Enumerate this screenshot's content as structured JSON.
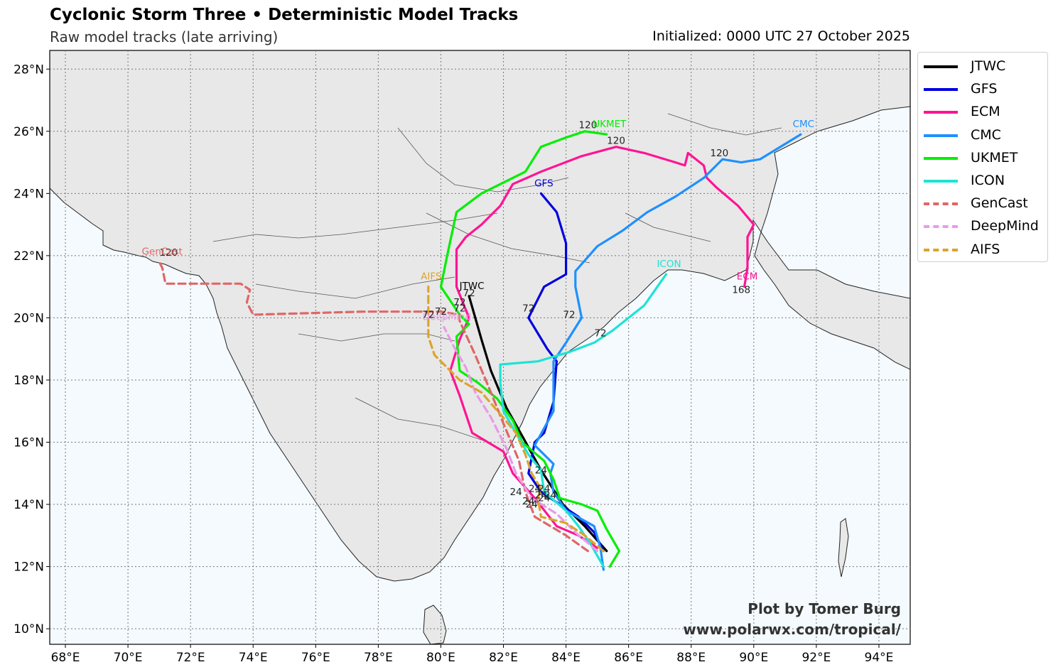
{
  "title": "Cyclonic Storm Three • Deterministic Model Tracks",
  "subtitle": "Raw model tracks (late arriving)",
  "initialized": "Initialized: 0000 UTC 27 October 2025",
  "credit": {
    "line1": "Plot by Tomer Burg",
    "line2": "www.polarwx.com/tropical/"
  },
  "chart_data": {
    "type": "line",
    "xlim": [
      67.5,
      95.0
    ],
    "ylim": [
      9.5,
      28.6
    ],
    "grid": true,
    "legend_placement": "right",
    "x_ticks": [
      "68°E",
      "70°E",
      "72°E",
      "74°E",
      "76°E",
      "78°E",
      "80°E",
      "82°E",
      "84°E",
      "86°E",
      "88°E",
      "90°E",
      "92°E",
      "94°E"
    ],
    "y_ticks": [
      "10°N",
      "12°N",
      "14°N",
      "16°N",
      "18°N",
      "20°N",
      "22°N",
      "24°N",
      "26°N",
      "28°N"
    ],
    "series": [
      {
        "name": "JTWC",
        "color": "#000000",
        "dash": "solid",
        "end_label": "JTWC",
        "points": [
          [
            85.3,
            12.5
          ],
          [
            84.6,
            13.3
          ],
          [
            83.9,
            14.0
          ],
          [
            83.2,
            15.1
          ],
          [
            82.6,
            16.2
          ],
          [
            82.1,
            17.1
          ],
          [
            81.6,
            18.3
          ],
          [
            81.3,
            19.3
          ],
          [
            80.9,
            20.7
          ]
        ],
        "hour_labels": [
          {
            "t": "24",
            "lon": 83.2,
            "lat": 15.0
          },
          {
            "t": "72",
            "lon": 80.9,
            "lat": 20.7
          }
        ]
      },
      {
        "name": "GFS",
        "color": "#0000dd",
        "dash": "solid",
        "end_label": "GFS",
        "points": [
          [
            85.2,
            12.5
          ],
          [
            84.9,
            13.1
          ],
          [
            84.4,
            13.6
          ],
          [
            83.8,
            14.0
          ],
          [
            83.2,
            14.4
          ],
          [
            82.8,
            15.0
          ],
          [
            83.0,
            16.0
          ],
          [
            83.3,
            16.3
          ],
          [
            83.6,
            17.3
          ],
          [
            83.7,
            18.6
          ],
          [
            83.4,
            19.0
          ],
          [
            82.8,
            20.0
          ],
          [
            83.3,
            21.0
          ],
          [
            84.0,
            21.4
          ],
          [
            84.0,
            22.4
          ],
          [
            83.7,
            23.4
          ],
          [
            83.2,
            24.0
          ]
        ],
        "hour_labels": [
          {
            "t": "24",
            "lon": 82.8,
            "lat": 14.0
          },
          {
            "t": "72",
            "lon": 82.8,
            "lat": 20.2
          }
        ]
      },
      {
        "name": "ECM",
        "color": "#ff1493",
        "dash": "solid",
        "end_label": "ECM",
        "points": [
          [
            85.0,
            12.6
          ],
          [
            84.4,
            13.0
          ],
          [
            83.7,
            13.3
          ],
          [
            83.0,
            14.2
          ],
          [
            82.3,
            15.0
          ],
          [
            82.0,
            15.7
          ],
          [
            81.0,
            16.3
          ],
          [
            80.6,
            17.5
          ],
          [
            80.3,
            18.3
          ],
          [
            80.6,
            19.3
          ],
          [
            80.9,
            20.0
          ],
          [
            80.5,
            21.0
          ],
          [
            80.5,
            22.2
          ],
          [
            80.8,
            22.6
          ],
          [
            81.3,
            23.0
          ],
          [
            81.9,
            23.6
          ],
          [
            82.3,
            24.3
          ],
          [
            83.2,
            24.7
          ],
          [
            84.5,
            25.2
          ],
          [
            85.6,
            25.5
          ],
          [
            86.5,
            25.3
          ],
          [
            87.5,
            25.0
          ],
          [
            87.8,
            24.9
          ],
          [
            87.9,
            25.3
          ],
          [
            88.4,
            24.9
          ],
          [
            88.5,
            24.5
          ],
          [
            88.8,
            24.2
          ],
          [
            89.5,
            23.6
          ],
          [
            90.0,
            23.0
          ],
          [
            89.8,
            22.6
          ],
          [
            89.8,
            21.6
          ],
          [
            89.7,
            21.0
          ]
        ],
        "hour_labels": [
          {
            "t": "24",
            "lon": 82.9,
            "lat": 13.9
          },
          {
            "t": "72",
            "lon": 80.6,
            "lat": 20.2
          },
          {
            "t": "120",
            "lon": 85.6,
            "lat": 25.6
          },
          {
            "t": "168",
            "lon": 89.6,
            "lat": 20.8
          }
        ]
      },
      {
        "name": "CMC",
        "color": "#1e90ff",
        "dash": "solid",
        "end_label": "CMC",
        "points": [
          [
            85.2,
            11.9
          ],
          [
            85.1,
            12.6
          ],
          [
            84.9,
            13.3
          ],
          [
            84.0,
            13.8
          ],
          [
            83.6,
            14.4
          ],
          [
            83.5,
            15.0
          ],
          [
            83.6,
            15.3
          ],
          [
            83.0,
            15.9
          ],
          [
            83.6,
            17.0
          ],
          [
            83.6,
            18.6
          ],
          [
            84.0,
            19.2
          ],
          [
            84.5,
            20.0
          ],
          [
            84.3,
            21.0
          ],
          [
            84.3,
            21.5
          ],
          [
            85.0,
            22.3
          ],
          [
            85.8,
            22.8
          ],
          [
            86.6,
            23.4
          ],
          [
            87.5,
            23.9
          ],
          [
            88.4,
            24.5
          ],
          [
            89.0,
            25.1
          ],
          [
            89.6,
            25.0
          ],
          [
            90.2,
            25.1
          ],
          [
            91.5,
            25.9
          ]
        ],
        "hour_labels": [
          {
            "t": "24",
            "lon": 83.3,
            "lat": 14.4
          },
          {
            "t": "72",
            "lon": 84.1,
            "lat": 20.0
          },
          {
            "t": "120",
            "lon": 88.9,
            "lat": 25.2
          }
        ]
      },
      {
        "name": "UKMET",
        "color": "#00ee00",
        "dash": "solid",
        "end_label": "UKMET",
        "points": [
          [
            85.4,
            12.0
          ],
          [
            85.7,
            12.5
          ],
          [
            85.3,
            13.2
          ],
          [
            85.0,
            13.8
          ],
          [
            84.5,
            14.0
          ],
          [
            83.8,
            14.2
          ],
          [
            83.6,
            14.8
          ],
          [
            83.3,
            15.4
          ],
          [
            82.6,
            16.0
          ],
          [
            82.3,
            16.7
          ],
          [
            81.8,
            17.4
          ],
          [
            81.2,
            17.9
          ],
          [
            80.6,
            18.3
          ],
          [
            80.5,
            19.4
          ],
          [
            80.9,
            19.8
          ],
          [
            80.6,
            20.1
          ],
          [
            80.0,
            21.0
          ],
          [
            80.2,
            22.0
          ],
          [
            80.5,
            23.4
          ],
          [
            81.3,
            24.0
          ],
          [
            82.7,
            24.7
          ],
          [
            83.2,
            25.5
          ],
          [
            84.0,
            25.8
          ],
          [
            84.6,
            26.0
          ],
          [
            85.3,
            25.9
          ]
        ],
        "hour_labels": [
          {
            "t": "24",
            "lon": 83.5,
            "lat": 14.2
          },
          {
            "t": "72",
            "lon": 80.6,
            "lat": 20.4
          },
          {
            "t": "120",
            "lon": 84.7,
            "lat": 26.1
          }
        ]
      },
      {
        "name": "ICON",
        "color": "#1ee3d5",
        "dash": "solid",
        "end_label": "ICON",
        "points": [
          [
            85.2,
            12.0
          ],
          [
            84.8,
            12.7
          ],
          [
            84.4,
            13.3
          ],
          [
            84.0,
            13.8
          ],
          [
            83.3,
            14.4
          ],
          [
            83.2,
            15.1
          ],
          [
            82.8,
            15.6
          ],
          [
            82.4,
            16.3
          ],
          [
            82.0,
            17.0
          ],
          [
            81.9,
            17.9
          ],
          [
            81.9,
            18.5
          ],
          [
            83.1,
            18.6
          ],
          [
            84.1,
            18.9
          ],
          [
            84.9,
            19.2
          ],
          [
            85.5,
            19.6
          ],
          [
            86.5,
            20.4
          ],
          [
            87.2,
            21.4
          ]
        ],
        "hour_labels": [
          {
            "t": "24",
            "lon": 83.3,
            "lat": 14.1
          },
          {
            "t": "72",
            "lon": 85.1,
            "lat": 19.4
          }
        ]
      },
      {
        "name": "GenCast",
        "color": "#e06666",
        "dash": "dashed",
        "end_label": "GenCast",
        "points": [
          [
            84.7,
            12.5
          ],
          [
            84.0,
            13.0
          ],
          [
            83.0,
            13.6
          ],
          [
            82.7,
            14.4
          ],
          [
            82.5,
            15.4
          ],
          [
            82.0,
            16.6
          ],
          [
            81.6,
            17.6
          ],
          [
            81.1,
            18.8
          ],
          [
            80.6,
            19.9
          ],
          [
            80.6,
            20.1
          ],
          [
            80.0,
            20.2
          ],
          [
            77.5,
            20.2
          ],
          [
            74.0,
            20.1
          ],
          [
            73.8,
            20.5
          ],
          [
            73.9,
            20.9
          ],
          [
            73.6,
            21.1
          ],
          [
            71.2,
            21.1
          ],
          [
            71.1,
            21.6
          ],
          [
            71.0,
            21.8
          ]
        ],
        "hour_labels": [
          {
            "t": "24",
            "lon": 82.4,
            "lat": 14.3
          },
          {
            "t": "72",
            "lon": 80.0,
            "lat": 20.1
          },
          {
            "t": "120",
            "lon": 71.3,
            "lat": 22.0
          }
        ]
      },
      {
        "name": "DeepMind",
        "color": "#e99ae8",
        "dash": "dashed",
        "end_label": "DeepMind",
        "points": [
          [
            85.0,
            12.5
          ],
          [
            84.3,
            13.1
          ],
          [
            83.7,
            13.7
          ],
          [
            82.9,
            14.2
          ],
          [
            82.4,
            15.0
          ],
          [
            82.1,
            15.8
          ],
          [
            81.6,
            16.8
          ],
          [
            81.1,
            17.6
          ],
          [
            80.8,
            18.4
          ],
          [
            80.4,
            19.1
          ],
          [
            80.2,
            19.5
          ],
          [
            80.1,
            19.7
          ]
        ],
        "hour_labels": [
          {
            "t": "24",
            "lon": 83.0,
            "lat": 14.4
          }
        ]
      },
      {
        "name": "AIFS",
        "color": "#dba42a",
        "dash": "dashed",
        "end_label": "AIFS",
        "points": [
          [
            85.2,
            12.5
          ],
          [
            84.6,
            13.0
          ],
          [
            84.0,
            13.4
          ],
          [
            83.2,
            13.6
          ],
          [
            83.1,
            14.2
          ],
          [
            83.2,
            14.5
          ],
          [
            82.9,
            15.0
          ],
          [
            82.7,
            15.6
          ],
          [
            82.4,
            16.3
          ],
          [
            81.9,
            16.9
          ],
          [
            81.3,
            17.6
          ],
          [
            80.6,
            18.0
          ],
          [
            80.1,
            18.5
          ],
          [
            79.8,
            18.8
          ],
          [
            79.6,
            19.4
          ],
          [
            79.6,
            20.0
          ],
          [
            79.6,
            20.5
          ],
          [
            79.6,
            21.0
          ]
        ],
        "hour_labels": [
          {
            "t": "24",
            "lon": 83.2,
            "lat": 14.2
          },
          {
            "t": "72",
            "lon": 79.6,
            "lat": 20.0
          }
        ]
      }
    ]
  }
}
